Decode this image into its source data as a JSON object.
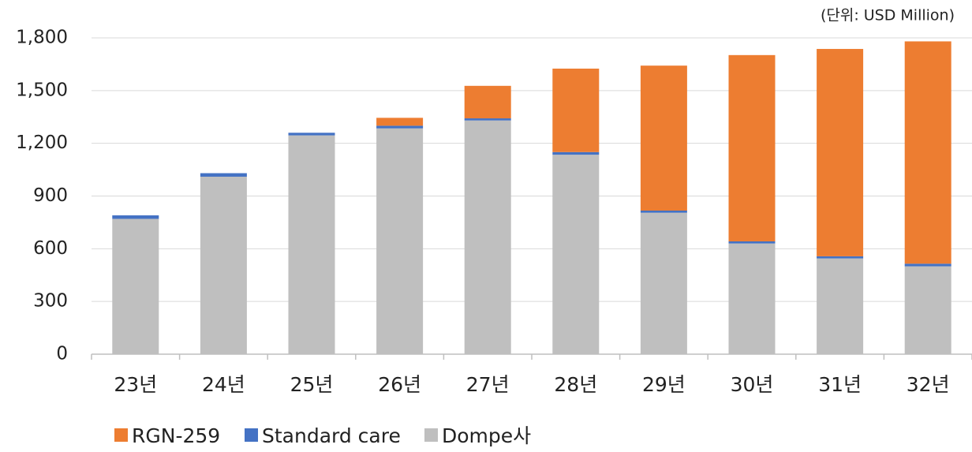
{
  "chart_data": {
    "type": "stacked_bar",
    "unit_label": "(단위:  USD Million)",
    "categories": [
      "23년",
      "24년",
      "25년",
      "26년",
      "27년",
      "28년",
      "29년",
      "30년",
      "31년",
      "32년"
    ],
    "series": [
      {
        "name": "RGN-259",
        "color": "#ed7d31",
        "values": [
          0,
          0,
          0,
          45,
          185,
          475,
          825,
          1060,
          1180,
          1265
        ]
      },
      {
        "name": "Standard care",
        "color": "#4472c4",
        "values": [
          20,
          20,
          15,
          15,
          12,
          15,
          12,
          12,
          12,
          15
        ]
      },
      {
        "name": "Dompe사",
        "color": "#bfbfbf",
        "values": [
          770,
          1010,
          1245,
          1285,
          1330,
          1135,
          805,
          630,
          545,
          500
        ]
      }
    ],
    "ylim": [
      0,
      1800
    ],
    "yticks": [
      0,
      300,
      600,
      900,
      {
        "value": 1200,
        "label": "1,200"
      },
      {
        "value": 1500,
        "label": "1,500"
      },
      {
        "value": 1800,
        "label": "1,800"
      }
    ],
    "grid": true,
    "legend": "bottom"
  }
}
